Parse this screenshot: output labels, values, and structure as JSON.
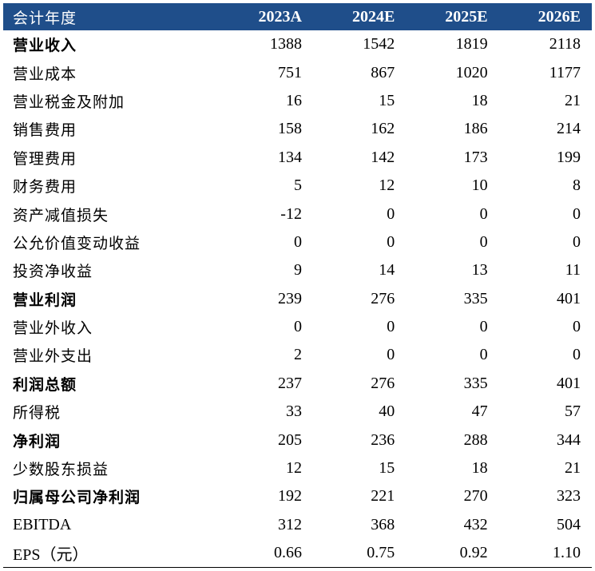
{
  "colors": {
    "header_bg": "#1f4e8a",
    "header_text": "#ffffff"
  },
  "header": [
    "会计年度",
    "2023A",
    "2024E",
    "2025E",
    "2026E"
  ],
  "rows": [
    {
      "label": "营业收入",
      "bold": true,
      "values": [
        "1388",
        "1542",
        "1819",
        "2118"
      ]
    },
    {
      "label": "营业成本",
      "bold": false,
      "values": [
        "751",
        "867",
        "1020",
        "1177"
      ]
    },
    {
      "label": "营业税金及附加",
      "bold": false,
      "values": [
        "16",
        "15",
        "18",
        "21"
      ]
    },
    {
      "label": "销售费用",
      "bold": false,
      "values": [
        "158",
        "162",
        "186",
        "214"
      ]
    },
    {
      "label": "管理费用",
      "bold": false,
      "values": [
        "134",
        "142",
        "173",
        "199"
      ]
    },
    {
      "label": "财务费用",
      "bold": false,
      "values": [
        "5",
        "12",
        "10",
        "8"
      ]
    },
    {
      "label": "资产减值损失",
      "bold": false,
      "values": [
        "-12",
        "0",
        "0",
        "0"
      ]
    },
    {
      "label": "公允价值变动收益",
      "bold": false,
      "values": [
        "0",
        "0",
        "0",
        "0"
      ]
    },
    {
      "label": "投资净收益",
      "bold": false,
      "values": [
        "9",
        "14",
        "13",
        "11"
      ]
    },
    {
      "label": "营业利润",
      "bold": true,
      "values": [
        "239",
        "276",
        "335",
        "401"
      ]
    },
    {
      "label": "营业外收入",
      "bold": false,
      "values": [
        "0",
        "0",
        "0",
        "0"
      ]
    },
    {
      "label": "营业外支出",
      "bold": false,
      "values": [
        "2",
        "0",
        "0",
        "0"
      ]
    },
    {
      "label": "利润总额",
      "bold": true,
      "values": [
        "237",
        "276",
        "335",
        "401"
      ]
    },
    {
      "label": "所得税",
      "bold": false,
      "values": [
        "33",
        "40",
        "47",
        "57"
      ]
    },
    {
      "label": "净利润",
      "bold": true,
      "values": [
        "205",
        "236",
        "288",
        "344"
      ]
    },
    {
      "label": "少数股东损益",
      "bold": false,
      "values": [
        "12",
        "15",
        "18",
        "21"
      ]
    },
    {
      "label": "归属母公司净利润",
      "bold": true,
      "values": [
        "192",
        "221",
        "270",
        "323"
      ]
    },
    {
      "label": "EBITDA",
      "bold": false,
      "latin": true,
      "values": [
        "312",
        "368",
        "432",
        "504"
      ]
    },
    {
      "label": "EPS（元）",
      "bold": false,
      "latin": true,
      "values": [
        "0.66",
        "0.75",
        "0.92",
        "1.10"
      ]
    }
  ]
}
